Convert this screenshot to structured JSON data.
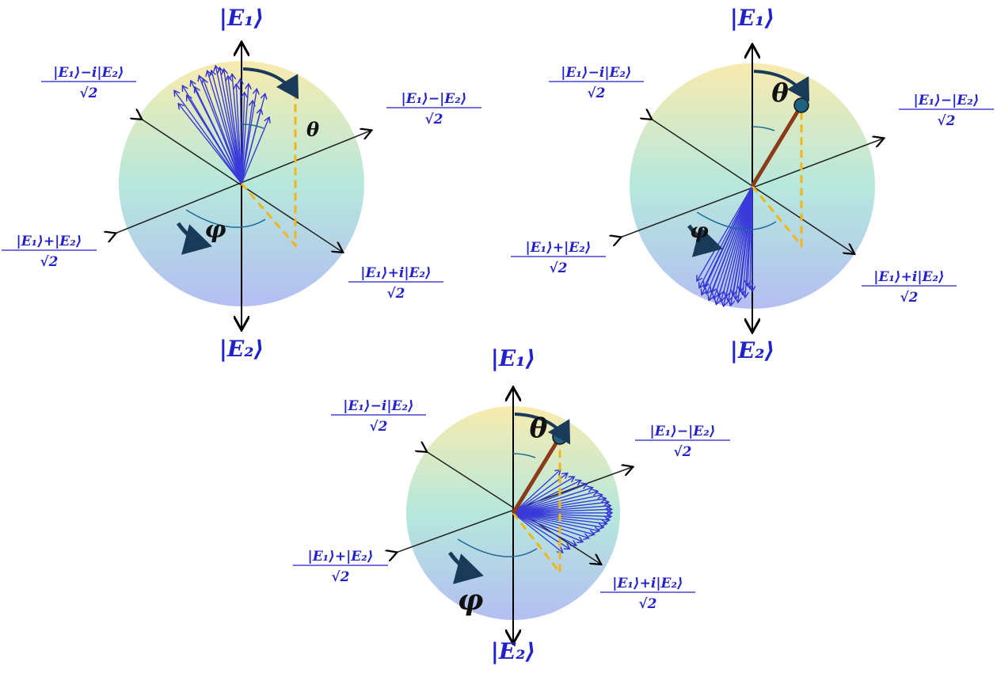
{
  "spheres": [
    {
      "top": "|E₁⟩",
      "bottom": "|E₂⟩",
      "axes": [
        {
          "numerator": "|E₁⟩−i|E₂⟩",
          "denominator": "√2"
        },
        {
          "numerator": "|E₁⟩−|E₂⟩",
          "denominator": "√2"
        },
        {
          "numerator": "|E₁⟩+|E₂⟩",
          "denominator": "√2"
        },
        {
          "numerator": "|E₁⟩+i|E₂⟩",
          "denominator": "√2"
        }
      ],
      "theta": "θ",
      "phi": "φ"
    },
    {
      "top": "|E₁⟩",
      "bottom": "|E₂⟩",
      "axes": [
        {
          "numerator": "|E₁⟩−i|E₂⟩",
          "denominator": "√2"
        },
        {
          "numerator": "|E₁⟩−|E₂⟩",
          "denominator": "√2"
        },
        {
          "numerator": "|E₁⟩+|E₂⟩",
          "denominator": "√2"
        },
        {
          "numerator": "|E₁⟩+i|E₂⟩",
          "denominator": "√2"
        }
      ],
      "theta": "θ",
      "phi": "φ"
    },
    {
      "top": "|E₁⟩",
      "bottom": "|E₂⟩",
      "axes": [
        {
          "numerator": "|E₁⟩−i|E₂⟩",
          "denominator": "√2"
        },
        {
          "numerator": "|E₁⟩−|E₂⟩",
          "denominator": "√2"
        },
        {
          "numerator": "|E₁⟩+|E₂⟩",
          "denominator": "√2"
        },
        {
          "numerator": "|E₁⟩+i|E₂⟩",
          "denominator": "√2"
        }
      ],
      "theta": "θ",
      "phi": "φ"
    }
  ]
}
